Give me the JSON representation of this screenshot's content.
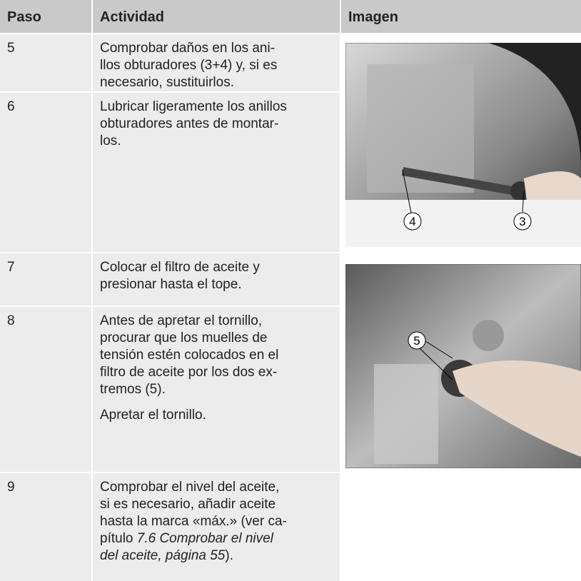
{
  "header": {
    "columns": [
      "Paso",
      "Actividad",
      "Imagen"
    ]
  },
  "rows": [
    {
      "step": "5",
      "paragraphs": [
        [
          "Comprobar daños en los ani-",
          "llos obturadores (3+4) y, si es",
          "necesario, sustituirlos."
        ]
      ]
    },
    {
      "step": "6",
      "paragraphs": [
        [
          "Lubricar ligeramente los anillos",
          "obturadores antes de montar-",
          "los."
        ]
      ]
    },
    {
      "step": "7",
      "paragraphs": [
        [
          "Colocar el filtro de aceite y",
          "presionar hasta el tope."
        ]
      ]
    },
    {
      "step": "8",
      "paragraphs": [
        [
          "Antes de apretar el tornillo,",
          "procurar que los muelles de",
          "tensión estén colocados en el",
          "filtro de aceite por los dos ex-",
          "tremos (5)."
        ],
        [
          "Apretar el tornillo."
        ]
      ]
    },
    {
      "step": "9",
      "paragraphs": [
        [
          "Comprobar el nivel del aceite,",
          "si es necesario, añadir aceite",
          "hasta la marca «máx.» (ver ca-"
        ]
      ],
      "tail": {
        "lead": "pítulo ",
        "italic": [
          "7.6 Comprobar el nivel",
          "del aceite, página 55"
        ],
        "end": ")."
      }
    }
  ],
  "images": [
    {
      "callouts": [
        "4",
        "3"
      ]
    },
    {
      "callouts": [
        "5"
      ]
    }
  ]
}
